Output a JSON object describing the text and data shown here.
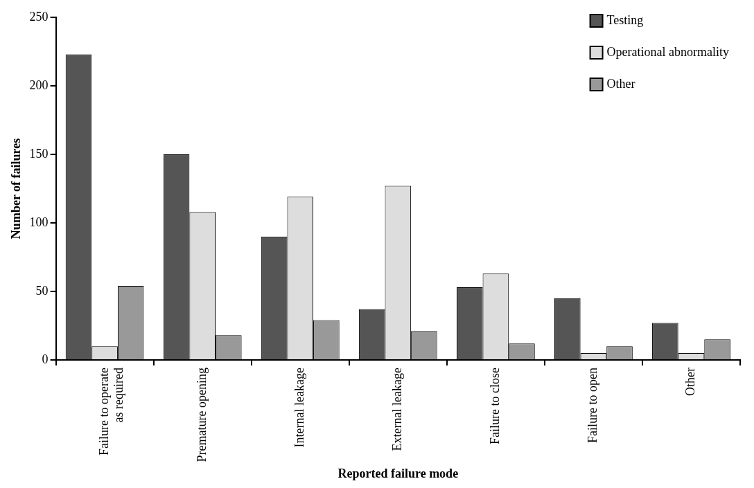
{
  "chart_data": {
    "type": "bar",
    "xlabel": "Reported failure mode",
    "ylabel": "Number of failures",
    "categories": [
      "Failure to operate as required",
      "Premature opening",
      "Internal leakage",
      "External leakage",
      "Failure to close",
      "Failure to open",
      "Other"
    ],
    "series": [
      {
        "name": "Testing",
        "color": "#555555",
        "values": [
          223,
          150,
          90,
          37,
          53,
          45,
          27
        ]
      },
      {
        "name": "Operational abnormality",
        "color": "#dddddd",
        "values": [
          10,
          108,
          119,
          127,
          63,
          5,
          5
        ]
      },
      {
        "name": "Other",
        "color": "#999999",
        "values": [
          54,
          18,
          29,
          21,
          12,
          10,
          15
        ]
      }
    ],
    "ylim": [
      0,
      250
    ],
    "yticks": [
      0,
      50,
      100,
      150,
      200,
      250
    ],
    "grid": false,
    "legend": "top right"
  }
}
